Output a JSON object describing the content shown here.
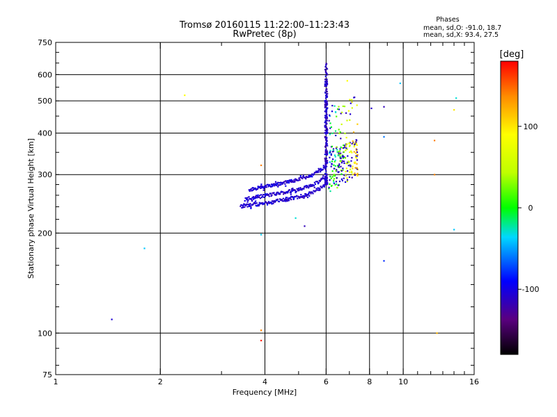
{
  "title": {
    "line1": "Tromsø 20160115 11:22:00–11:23:43",
    "line2": "RwPretec (8p)"
  },
  "stats": {
    "heading": "Phases",
    "line_o": "mean, sd,O: -91.0, 18.7",
    "line_x": "mean, sd,X:  93.4, 27.5"
  },
  "chart_data": {
    "type": "scatter",
    "xlabel": "Frequency [MHz]",
    "ylabel": "Stationary phase Virtual Height [km]",
    "xscale": "log",
    "yscale": "log",
    "xlim": [
      1,
      16
    ],
    "ylim": [
      75,
      750
    ],
    "x_ticks": [
      1,
      2,
      4,
      6,
      8,
      10,
      16
    ],
    "x_tick_labels": [
      "1",
      "2",
      "4",
      "6",
      "8",
      "10",
      "16"
    ],
    "y_ticks": [
      75,
      100,
      200,
      300,
      400,
      500,
      600,
      750
    ],
    "y_tick_labels": [
      "75",
      "100",
      "200",
      "300",
      "400",
      "500",
      "600",
      "750"
    ],
    "grid_x": [
      2,
      4,
      6,
      8,
      10
    ],
    "grid_y": [
      100,
      200,
      300,
      400,
      500,
      600
    ],
    "colorbar": {
      "label": "[deg]",
      "range": [
        -180,
        180
      ],
      "ticks": [
        100,
        0,
        -100
      ],
      "tick_labels": [
        "100",
        "0",
        "-100"
      ]
    },
    "bands": [
      {
        "f0": 3.4,
        "f1": 5.95,
        "h0": 240,
        "h1": 262
      },
      {
        "f0": 3.5,
        "f1": 6.0,
        "h0": 253,
        "h1": 278
      },
      {
        "f0": 3.6,
        "f1": 6.0,
        "h0": 270,
        "h1": 300
      }
    ],
    "cusp": {
      "f_min": 5.95,
      "f_max": 6.05,
      "h_min": 280,
      "h_max": 650,
      "phase": -110
    },
    "x_trace": {
      "f_range": [
        6.1,
        7.4
      ],
      "h_range": [
        260,
        560
      ],
      "phase_range": [
        -30,
        110
      ]
    },
    "isolated_points": [
      {
        "f": 1.45,
        "h": 110,
        "phase": -105
      },
      {
        "f": 1.8,
        "h": 180,
        "phase": -40
      },
      {
        "f": 2.35,
        "h": 520,
        "phase": 90
      },
      {
        "f": 3.9,
        "h": 320,
        "phase": 140
      },
      {
        "f": 3.9,
        "h": 198,
        "phase": -40
      },
      {
        "f": 3.9,
        "h": 102,
        "phase": 140
      },
      {
        "f": 3.9,
        "h": 95,
        "phase": 170
      },
      {
        "f": 4.9,
        "h": 222,
        "phase": -30
      },
      {
        "f": 5.2,
        "h": 210,
        "phase": -115
      },
      {
        "f": 6.9,
        "h": 575,
        "phase": 90
      },
      {
        "f": 8.1,
        "h": 475,
        "phase": -110
      },
      {
        "f": 8.8,
        "h": 480,
        "phase": -115
      },
      {
        "f": 8.8,
        "h": 390,
        "phase": -60
      },
      {
        "f": 8.8,
        "h": 165,
        "phase": -80
      },
      {
        "f": 9.8,
        "h": 565,
        "phase": -40
      },
      {
        "f": 12.3,
        "h": 380,
        "phase": 140
      },
      {
        "f": 12.3,
        "h": 300,
        "phase": 140
      },
      {
        "f": 12.5,
        "h": 100,
        "phase": 120
      },
      {
        "f": 14.0,
        "h": 470,
        "phase": 100
      },
      {
        "f": 14.2,
        "h": 510,
        "phase": -30
      },
      {
        "f": 14.0,
        "h": 205,
        "phase": -40
      }
    ]
  }
}
